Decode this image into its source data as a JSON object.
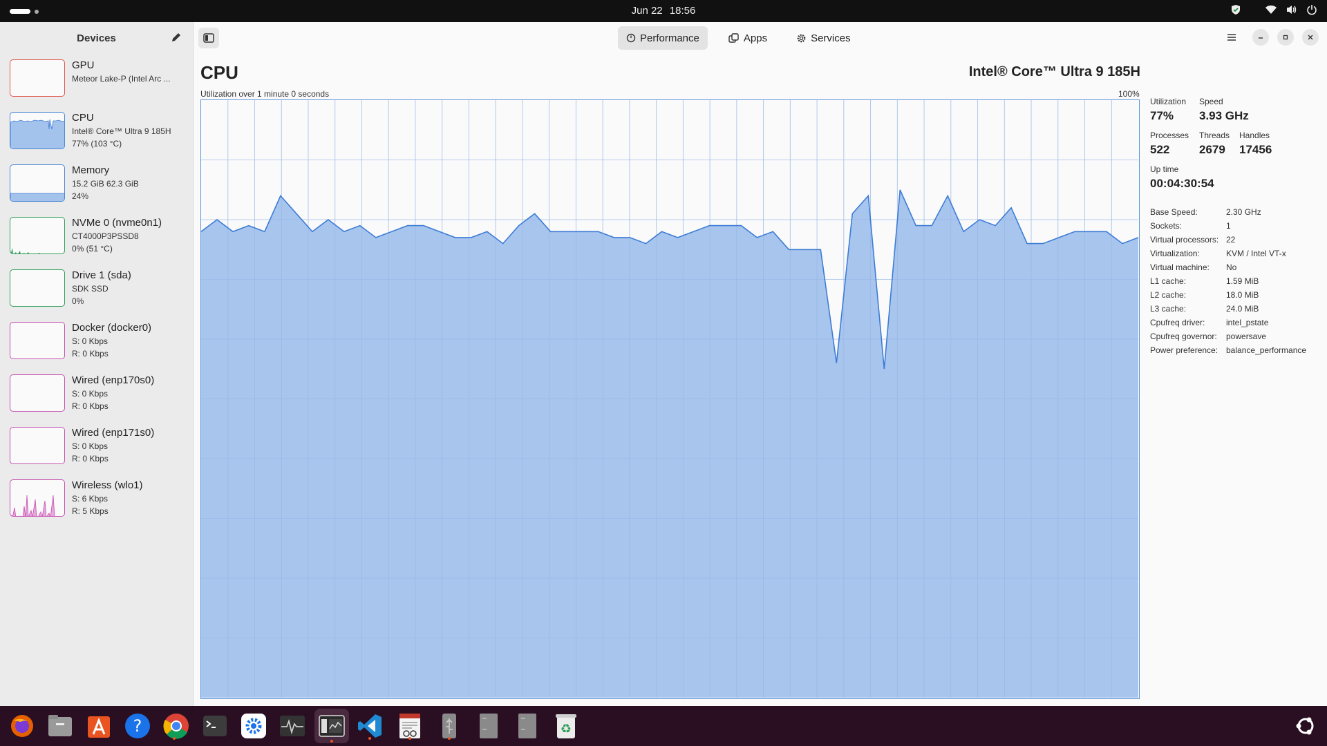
{
  "topbar": {
    "date": "Jun 22",
    "time": "18:56",
    "icons": [
      "shield-icon",
      "wifi-icon",
      "volume-icon",
      "power-icon"
    ]
  },
  "sidebar": {
    "title": "Devices",
    "devices": [
      {
        "name": "GPU",
        "line1": "Meteor Lake-P (Intel Arc ...",
        "line2": "",
        "color": "#e0554b"
      },
      {
        "name": "CPU",
        "line1": "Intel® Core™ Ultra 9 185H",
        "line2": "77% (103 °C)",
        "color": "#4a86d4"
      },
      {
        "name": "Memory",
        "line1": "15.2 GiB 62.3 GiB",
        "line2": "24%",
        "color": "#4a86d4"
      },
      {
        "name": "NVMe 0 (nvme0n1)",
        "line1": "CT4000P3PSSD8",
        "line2": "0% (51 °C)",
        "color": "#2e9e57"
      },
      {
        "name": "Drive 1 (sda)",
        "line1": "SDK SSD",
        "line2": "0%",
        "color": "#2e9e57"
      },
      {
        "name": "Docker (docker0)",
        "line1": "S: 0 Kbps",
        "line2": "R: 0 Kbps",
        "color": "#c64fb0"
      },
      {
        "name": "Wired (enp170s0)",
        "line1": "S: 0 Kbps",
        "line2": "R: 0 Kbps",
        "color": "#c64fb0"
      },
      {
        "name": "Wired (enp171s0)",
        "line1": "S: 0 Kbps",
        "line2": "R: 0 Kbps",
        "color": "#c64fb0"
      },
      {
        "name": "Wireless (wlo1)",
        "line1": "S: 6 Kbps",
        "line2": "R: 5 Kbps",
        "color": "#c64fb0"
      }
    ]
  },
  "header": {
    "tabs": [
      {
        "label": "Performance",
        "icon": "gauge-icon"
      },
      {
        "label": "Apps",
        "icon": "apps-icon"
      },
      {
        "label": "Services",
        "icon": "gear-icon"
      }
    ]
  },
  "main": {
    "title": "CPU",
    "model": "Intel® Core™ Ultra 9 185H",
    "util_caption": "Utilization over 1 minute 0 seconds",
    "max_label": "100%"
  },
  "stats": {
    "utilization_label": "Utilization",
    "utilization": "77%",
    "speed_label": "Speed",
    "speed": "3.93 GHz",
    "processes_label": "Processes",
    "processes": "522",
    "threads_label": "Threads",
    "threads": "2679",
    "handles_label": "Handles",
    "handles": "17456",
    "uptime_label": "Up time",
    "uptime": "00:04:30:54"
  },
  "info": [
    {
      "k": "Base Speed:",
      "v": "2.30 GHz"
    },
    {
      "k": "Sockets:",
      "v": "1"
    },
    {
      "k": "Virtual processors:",
      "v": "22"
    },
    {
      "k": "Virtualization:",
      "v": "KVM / Intel VT-x"
    },
    {
      "k": "Virtual machine:",
      "v": "No"
    },
    {
      "k": "L1 cache:",
      "v": "1.59 MiB"
    },
    {
      "k": "L2 cache:",
      "v": "18.0 MiB"
    },
    {
      "k": "L3 cache:",
      "v": "24.0 MiB"
    },
    {
      "k": "Cpufreq driver:",
      "v": "intel_pstate"
    },
    {
      "k": "Cpufreq governor:",
      "v": "powersave"
    },
    {
      "k": "Power preference:",
      "v": "balance_performance"
    }
  ],
  "chart_data": {
    "type": "area",
    "ylim": [
      0,
      100
    ],
    "values": [
      78,
      80,
      78,
      79,
      78,
      84,
      81,
      78,
      80,
      78,
      79,
      77,
      78,
      79,
      79,
      78,
      77,
      77,
      78,
      76,
      79,
      81,
      78,
      78,
      78,
      78,
      77,
      77,
      76,
      78,
      77,
      78,
      79,
      79,
      79,
      77,
      78,
      75,
      75,
      75,
      56,
      81,
      84,
      55,
      85,
      79,
      79,
      84,
      78,
      80,
      79,
      82,
      76,
      76,
      77,
      78,
      78,
      78,
      76,
      77
    ],
    "line_color": "#3d7cd6",
    "fill_color": "#a3c2ec"
  },
  "dock": {
    "apps": [
      "firefox-icon",
      "files-icon",
      "app-center-icon",
      "help-icon",
      "chrome-icon",
      "terminal-icon",
      "settings-icon",
      "system-monitor-icon",
      "resources-icon",
      "vscode-icon",
      "document-viewer-icon",
      "usb-icon",
      "drive-icon",
      "drive-icon",
      "trash-icon"
    ],
    "show_apps_icon": "ubuntu-icon"
  }
}
